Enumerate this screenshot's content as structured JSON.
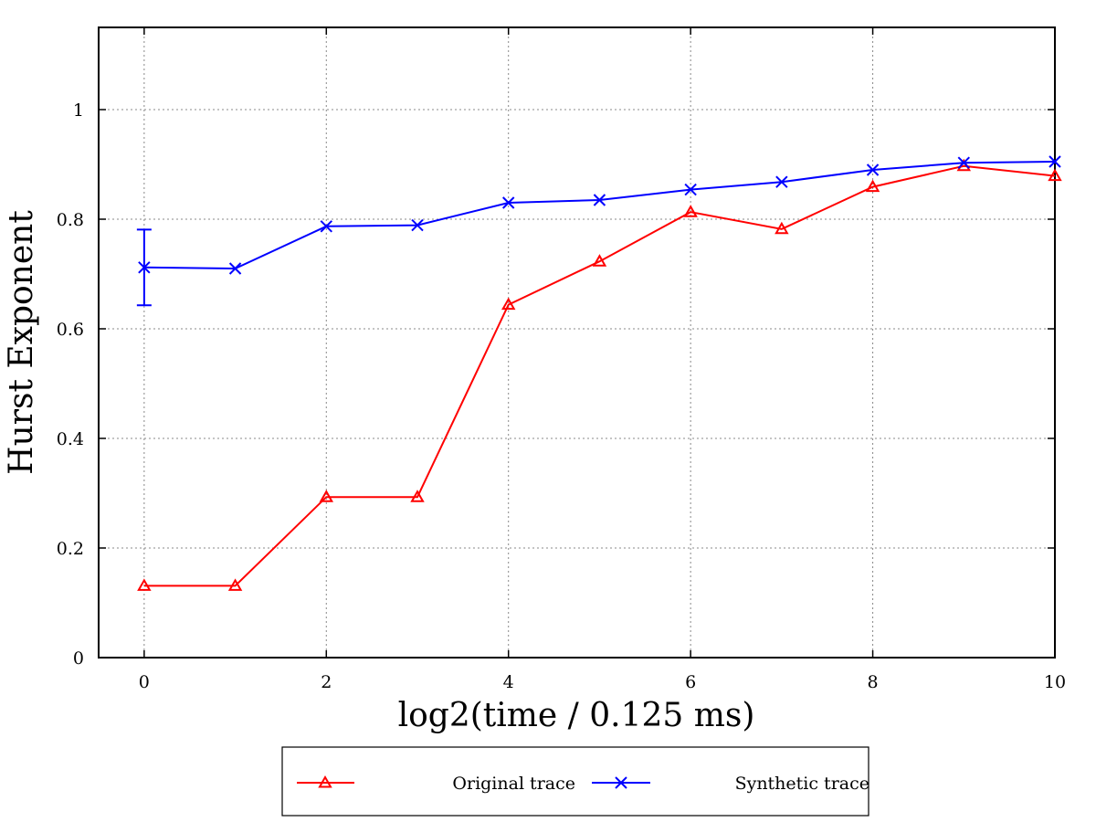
{
  "chart_data": {
    "type": "line",
    "xlabel": "log2(time / 0.125 ms)",
    "ylabel": "Hurst Exponent",
    "xlim": [
      -0.5,
      10
    ],
    "ylim": [
      0,
      1.15
    ],
    "xticks": [
      0,
      2,
      4,
      6,
      8,
      10
    ],
    "yticks": [
      0,
      0.2,
      0.4,
      0.6,
      0.8,
      1
    ],
    "xtick_labels": [
      "0",
      "2",
      "4",
      "6",
      "8",
      "10"
    ],
    "ytick_labels": [
      "0",
      "0.2",
      "0.4",
      "0.6",
      "0.8",
      "1"
    ],
    "grid": true,
    "legend_position": "bottom, outside plot",
    "series": [
      {
        "name": "Original trace",
        "color": "#ff0000",
        "marker": "triangle",
        "x": [
          0,
          1,
          2,
          3,
          4,
          5,
          6,
          7,
          8,
          9,
          10
        ],
        "values": [
          0.131,
          0.131,
          0.293,
          0.293,
          0.644,
          0.723,
          0.813,
          0.782,
          0.859,
          0.897,
          0.879
        ]
      },
      {
        "name": "Synthetic trace",
        "color": "#0000ff",
        "marker": "x",
        "x": [
          0,
          1,
          2,
          3,
          4,
          5,
          6,
          7,
          8,
          9,
          10
        ],
        "values": [
          0.712,
          0.71,
          0.787,
          0.789,
          0.83,
          0.835,
          0.854,
          0.868,
          0.89,
          0.903,
          0.905
        ],
        "error_bar": {
          "x": 0,
          "low": 0.643,
          "high": 0.781
        }
      }
    ]
  }
}
